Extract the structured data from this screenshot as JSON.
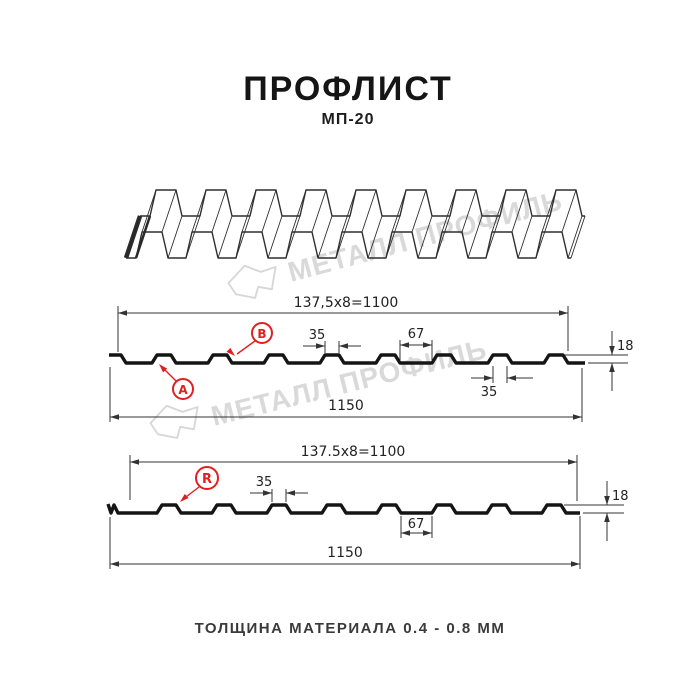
{
  "header": {
    "title": "ПРОФЛИСТ",
    "subtitle": "МП-20"
  },
  "watermark": {
    "brand": "МЕТАЛЛ ПРОФИЛЬ"
  },
  "sections": {
    "front": {
      "pitch": "137,5x8=1100",
      "overall": "1150",
      "rib_top": "35",
      "valley": "67",
      "height": "18",
      "rib_bottom": "35",
      "marker_a": "A",
      "marker_b": "B"
    },
    "reverse": {
      "pitch": "137.5x8=1100",
      "overall": "1150",
      "rib_top": "35",
      "valley": "67",
      "height": "18",
      "marker_r": "R"
    }
  },
  "footer": {
    "note": "ТОЛЩИНА МАТЕРИАЛА 0.4 - 0.8 ММ"
  },
  "colors": {
    "accent": "#e02020",
    "ink": "#151515",
    "dim_line": "#333333",
    "watermark": "#d9d9d9"
  }
}
